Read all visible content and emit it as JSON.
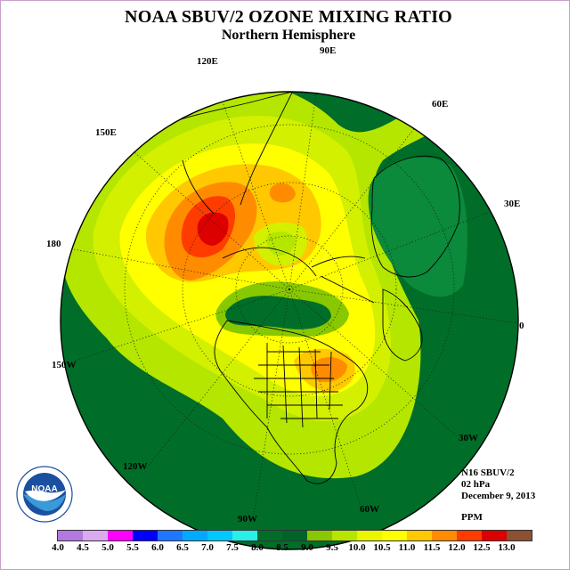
{
  "title": "NOAA SBUV/2 OZONE MIXING RATIO",
  "subtitle": "Northern Hemisphere",
  "longitude_labels": [
    "90E",
    "120E",
    "60E",
    "150E",
    "30E",
    "180",
    "0",
    "150W",
    "30W",
    "120W",
    "60W",
    "90W"
  ],
  "info": {
    "satellite": "N16 SBUV/2",
    "level": "02 hPa",
    "date": "December 9, 2013",
    "units": "PPM"
  },
  "logo": {
    "text": "NOAA",
    "ring_text": "NATIONAL OCEANIC AND ATMOSPHERIC ADMINISTRATION · U.S. DEPARTMENT OF COMMERCE"
  },
  "colorbar": {
    "ticks": [
      "4.0",
      "4.5",
      "5.0",
      "5.5",
      "6.0",
      "6.5",
      "7.0",
      "7.5",
      "8.0",
      "8.5",
      "9.0",
      "9.5",
      "10.0",
      "10.5",
      "11.0",
      "11.5",
      "12.0",
      "12.5",
      "13.0"
    ],
    "colors": [
      "#b478e0",
      "#dcaaf0",
      "#ff00ff",
      "#0000ff",
      "#1e78ff",
      "#00aaff",
      "#00c8ff",
      "#28f0e6",
      "#006e28",
      "#006428",
      "#88c800",
      "#b4e600",
      "#ebf500",
      "#ffff00",
      "#ffc800",
      "#ff8c00",
      "#ff3c00",
      "#dc0000",
      "#8c5032"
    ]
  }
}
